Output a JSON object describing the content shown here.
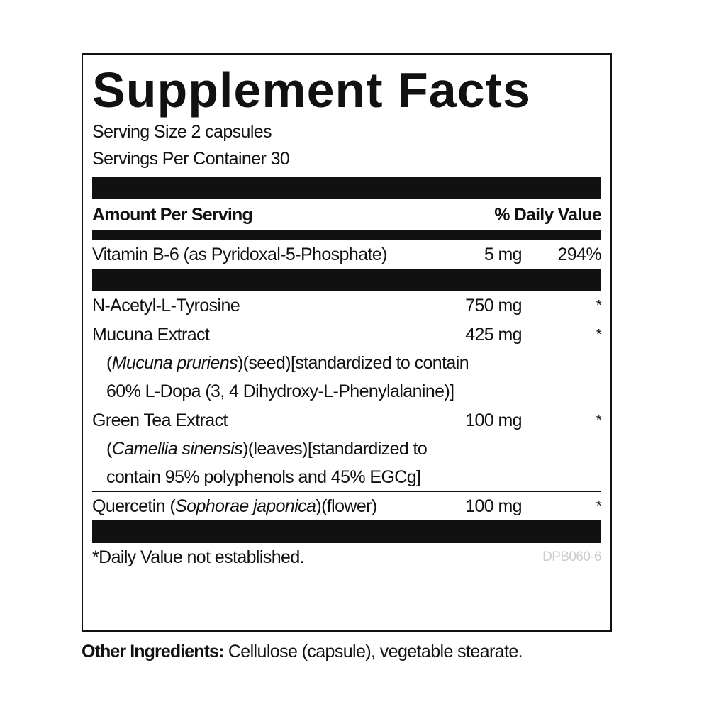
{
  "title": "Supplement Facts",
  "serving_size": "Serving Size 2 capsules",
  "servings_per_container": "Servings Per Container 30",
  "header": {
    "amount": "Amount Per Serving",
    "daily_value": "% Daily Value"
  },
  "sections": [
    [
      {
        "name": [
          {
            "text": "Vitamin B-6 (as Pyridoxal-5-Phosphate)",
            "italic": false
          }
        ],
        "amount": "5 mg",
        "daily_value": "294%",
        "details": []
      }
    ],
    [
      {
        "name": [
          {
            "text": "N-Acetyl-L-Tyrosine",
            "italic": false
          }
        ],
        "amount": "750 mg",
        "daily_value": "*",
        "details": []
      },
      {
        "name": [
          {
            "text": "Mucuna Extract",
            "italic": false
          }
        ],
        "amount": "425 mg",
        "daily_value": "*",
        "details": [
          [
            {
              "text": "(",
              "italic": false
            },
            {
              "text": "Mucuna pruriens",
              "italic": true
            },
            {
              "text": ")(seed)[standardized to contain",
              "italic": false
            }
          ],
          [
            {
              "text": "60% L-Dopa (3, 4 Dihydroxy-L-Phenylalanine)]",
              "italic": false
            }
          ]
        ]
      },
      {
        "name": [
          {
            "text": "Green Tea Extract",
            "italic": false
          }
        ],
        "amount": "100 mg",
        "daily_value": "*",
        "details": [
          [
            {
              "text": "(",
              "italic": false
            },
            {
              "text": "Camellia sinensis",
              "italic": true
            },
            {
              "text": ")(leaves)[standardized to",
              "italic": false
            }
          ],
          [
            {
              "text": "contain 95% polyphenols and 45% EGCg]",
              "italic": false
            }
          ]
        ]
      },
      {
        "name": [
          {
            "text": "Quercetin (",
            "italic": false
          },
          {
            "text": "Sophorae japonica",
            "italic": true
          },
          {
            "text": ")(flower)",
            "italic": false
          }
        ],
        "amount": "100 mg",
        "daily_value": "*",
        "details": []
      }
    ]
  ],
  "footnote": "*Daily Value not established.",
  "code": "DPB060-6",
  "other_ingredients": {
    "label": "Other Ingredients:",
    "text": " Cellulose (capsule), vegetable stearate."
  }
}
